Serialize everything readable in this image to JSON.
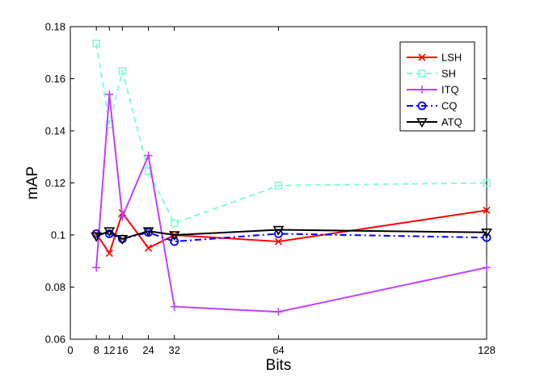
{
  "chart_data": {
    "type": "line",
    "title": "",
    "xlabel": "Bits",
    "ylabel": "mAP",
    "xlim": [
      0,
      128
    ],
    "ylim": [
      0.06,
      0.18
    ],
    "x_ticks": [
      0,
      8,
      12,
      16,
      24,
      32,
      64,
      128
    ],
    "x_tick_labels": [
      "0",
      "8",
      "12",
      "16",
      "24",
      "32",
      "64",
      "128"
    ],
    "y_ticks": [
      0.06,
      0.08,
      0.1,
      0.12,
      0.14,
      0.16,
      0.18
    ],
    "y_tick_labels": [
      "0.06",
      "0.08",
      "0.1",
      "0.12",
      "0.14",
      "0.16",
      "0.18"
    ],
    "grid": false,
    "legend_position": "top-right",
    "x": [
      8,
      12,
      16,
      24,
      32,
      64,
      128
    ],
    "series": [
      {
        "name": "LSH",
        "color": "#ff0000",
        "dash": "solid",
        "marker": "x",
        "values": [
          0.1005,
          0.093,
          0.1085,
          0.095,
          0.1,
          0.0975,
          0.1095
        ]
      },
      {
        "name": "SH",
        "color": "#7fffd4",
        "dash": "dashed",
        "marker": "square",
        "values": [
          0.1735,
          0.1425,
          0.163,
          0.1245,
          0.1045,
          0.119,
          0.12
        ]
      },
      {
        "name": "ITQ",
        "color": "#bf3fff",
        "dash": "solid",
        "marker": "plus",
        "values": [
          0.0875,
          0.154,
          0.107,
          0.1305,
          0.0725,
          0.0705,
          0.0875
        ]
      },
      {
        "name": "CQ",
        "color": "#0000ff",
        "dash": "dashdot",
        "marker": "circle",
        "values": [
          0.1005,
          0.1005,
          0.0985,
          0.101,
          0.0975,
          0.1005,
          0.099
        ]
      },
      {
        "name": "ATQ",
        "color": "#000000",
        "dash": "solid",
        "marker": "triangle",
        "values": [
          0.0995,
          0.1015,
          0.0985,
          0.1015,
          0.1,
          0.102,
          0.101
        ]
      }
    ]
  }
}
